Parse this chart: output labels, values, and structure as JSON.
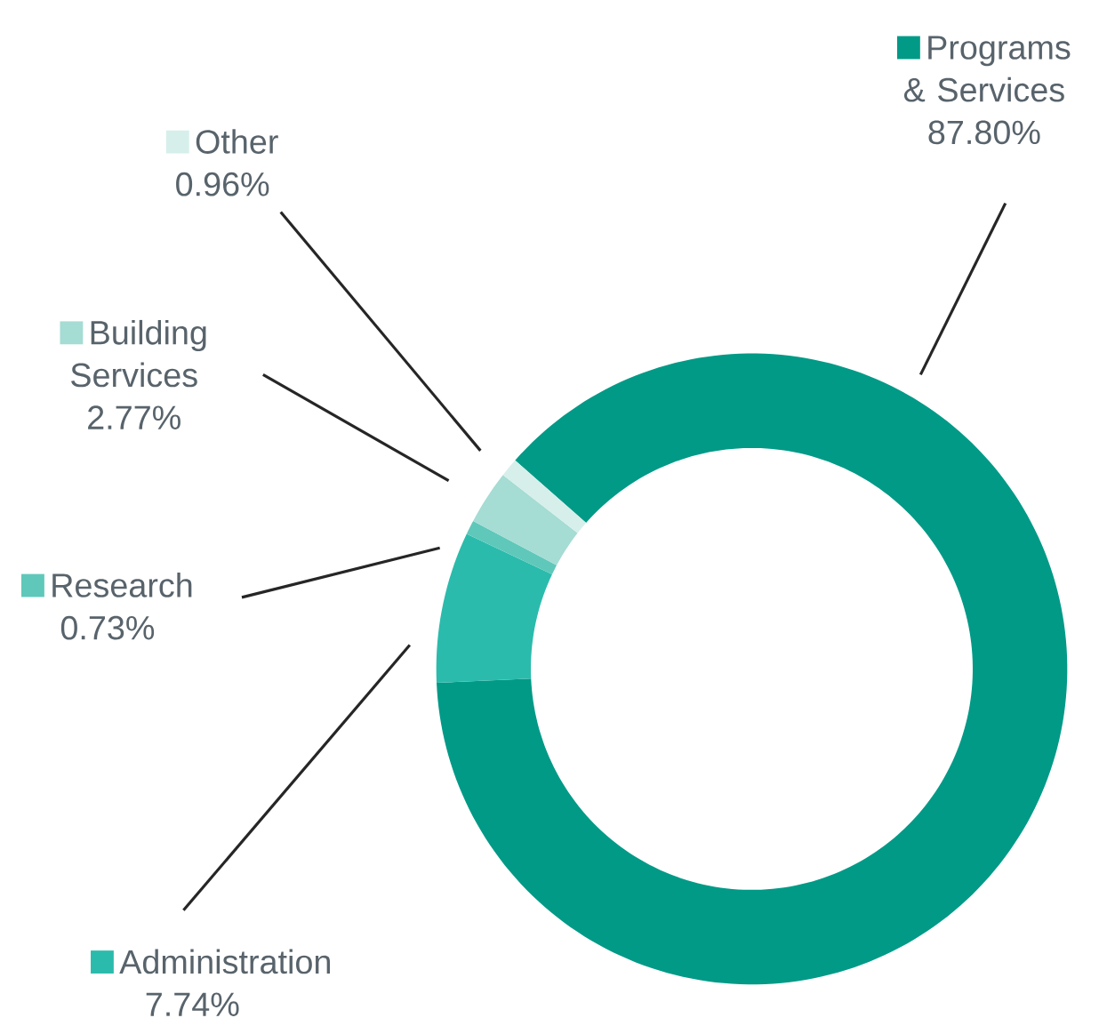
{
  "chart_data": {
    "type": "donut",
    "legend": "left",
    "categories": [
      "Programs & Services",
      "Administration",
      "Research",
      "Building Services",
      "Other"
    ],
    "values": [
      87.8,
      7.74,
      0.73,
      2.77,
      0.96
    ],
    "value_labels": [
      "87.80%",
      "7.74%",
      "0.73%",
      "2.77%",
      "0.96%"
    ],
    "colors": [
      "#009a87",
      "#2bbbac",
      "#5fc8ba",
      "#a5dcd3",
      "#d6efeb"
    ]
  }
}
